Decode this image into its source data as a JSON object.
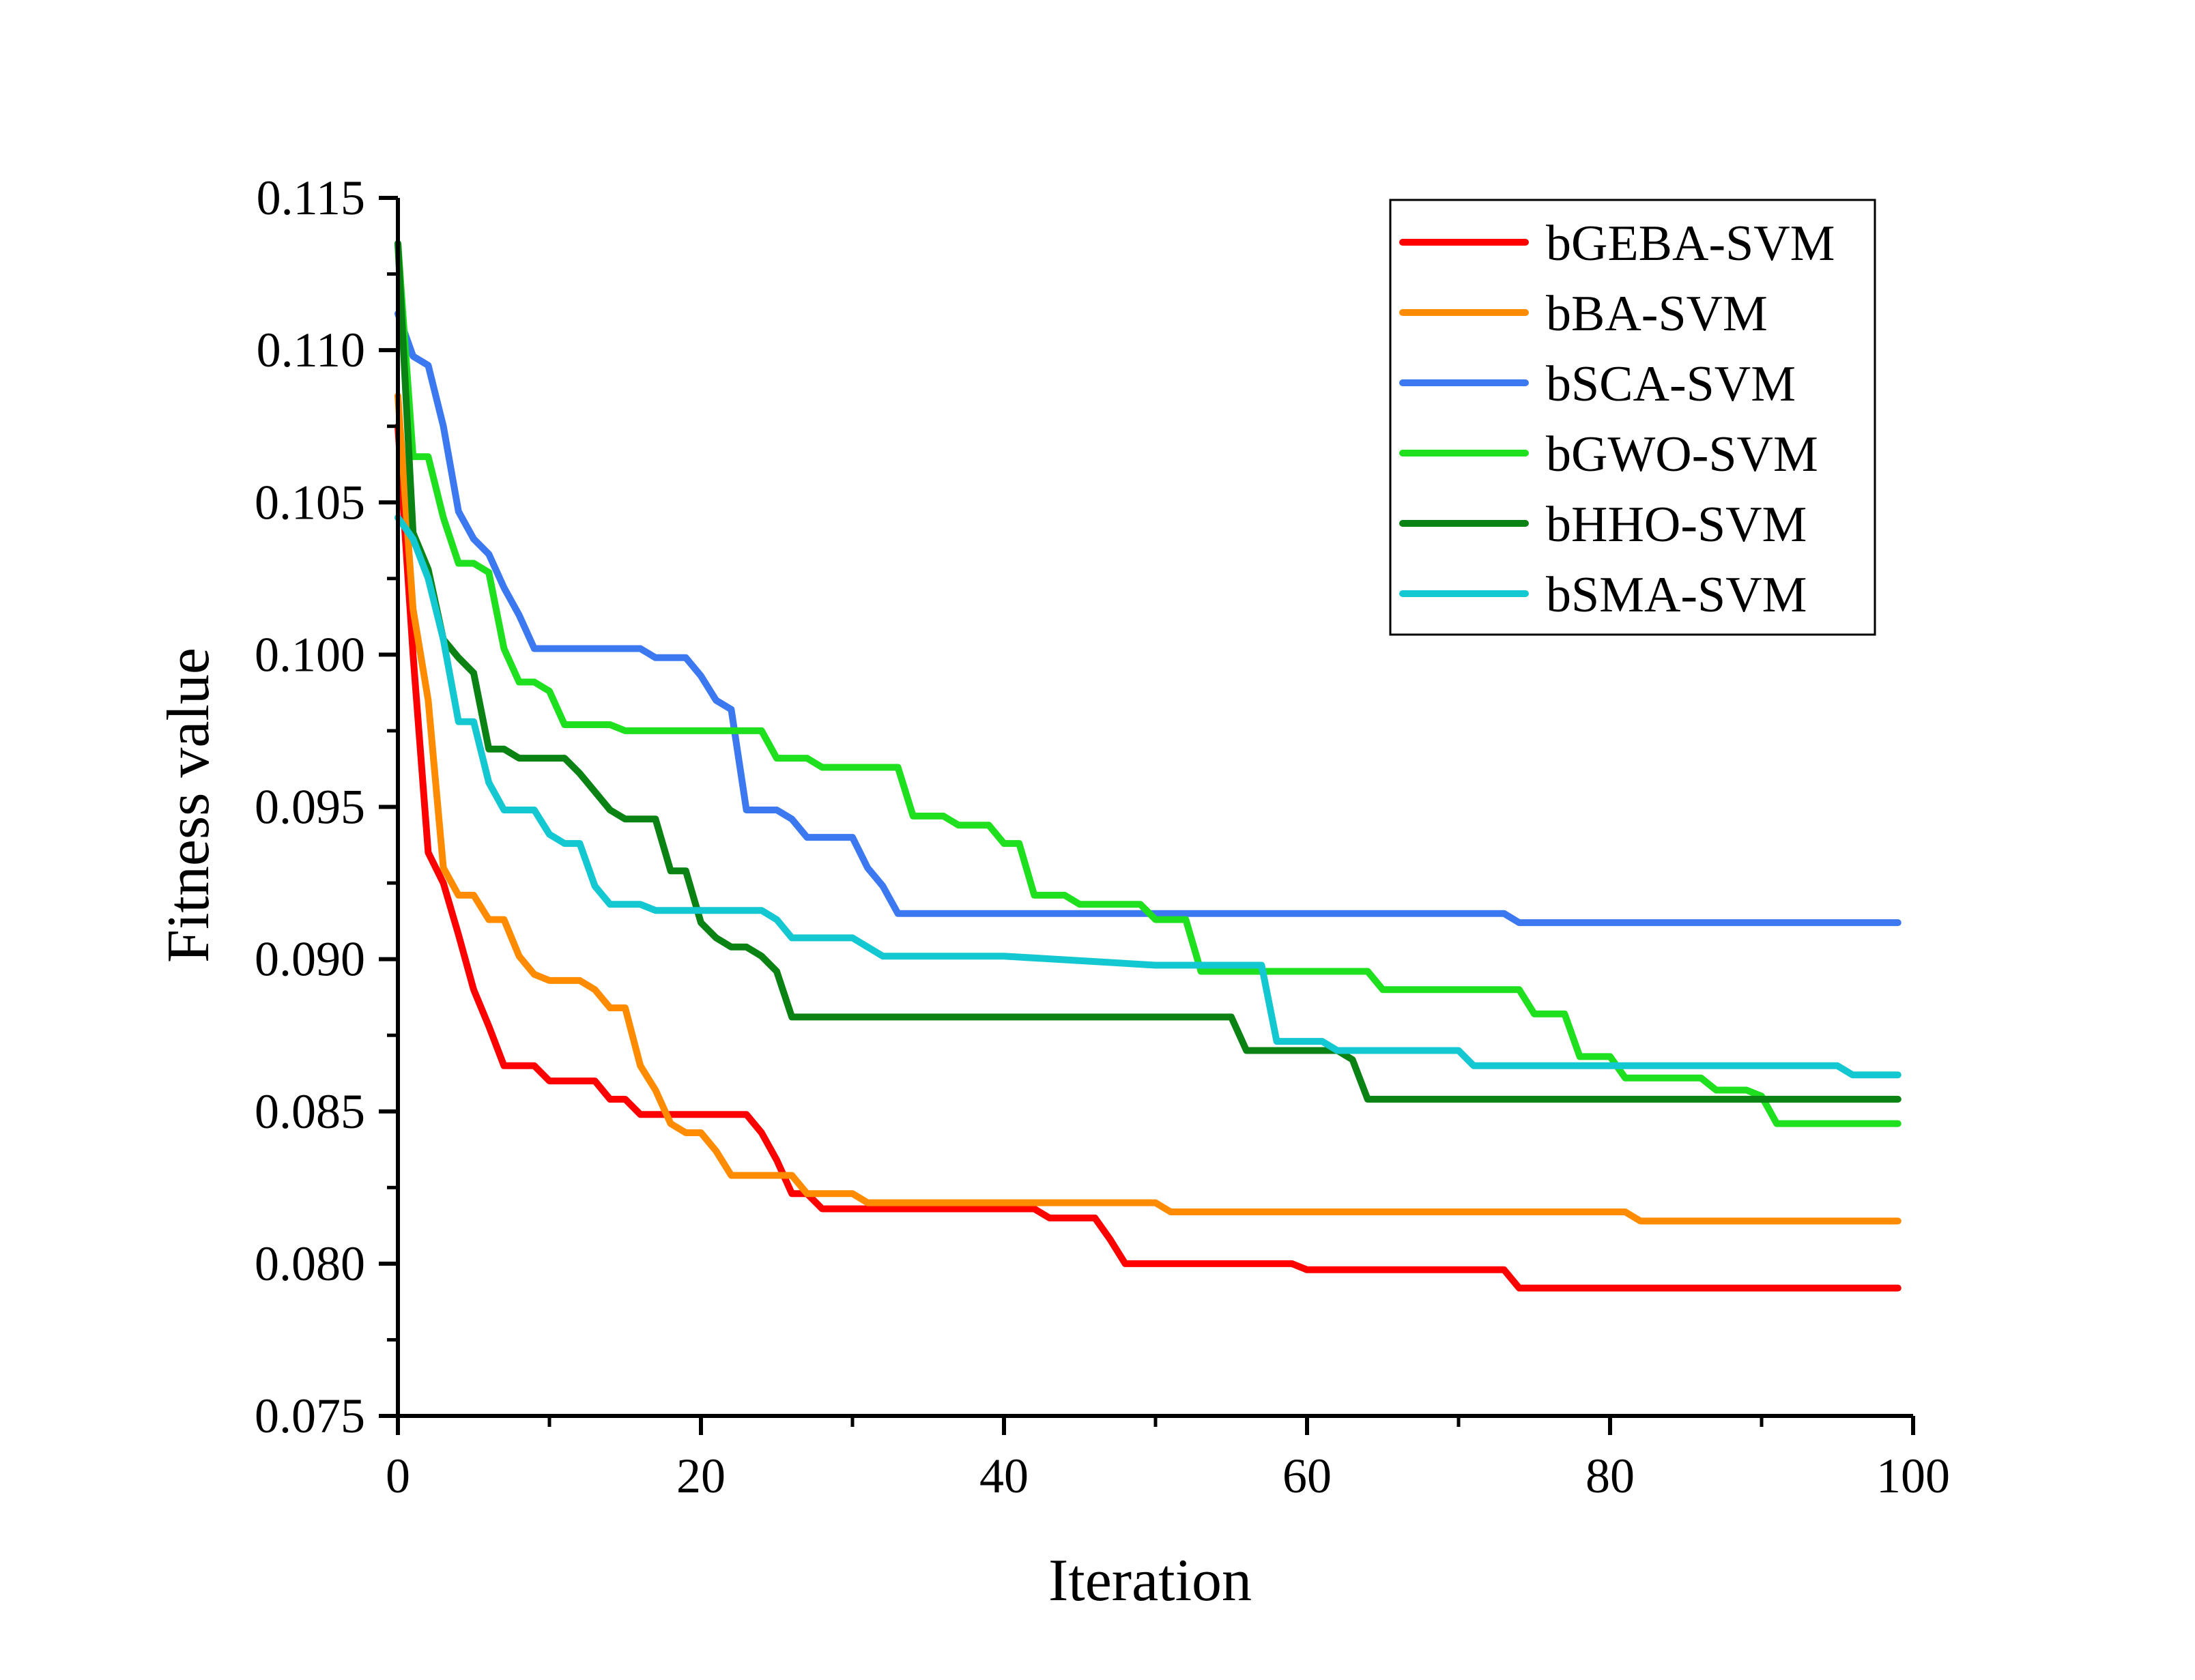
{
  "chart_data": {
    "type": "line",
    "title": "",
    "xlabel": "Iteration",
    "ylabel": "Fitness value",
    "xlim": [
      0,
      100
    ],
    "ylim": [
      0.075,
      0.115
    ],
    "xticks": [
      0,
      20,
      40,
      60,
      80,
      100
    ],
    "xtick_labels": [
      "0",
      "20",
      "40",
      "60",
      "80",
      "100"
    ],
    "yticks": [
      0.075,
      0.08,
      0.085,
      0.09,
      0.095,
      0.1,
      0.105,
      0.11,
      0.115
    ],
    "ytick_labels": [
      "0.075",
      "0.080",
      "0.085",
      "0.090",
      "0.095",
      "0.100",
      "0.105",
      "0.110",
      "0.115"
    ],
    "grid": false,
    "legend_position": "top-right",
    "series": [
      {
        "name": "bGEBA-SVM",
        "color": "#ff0000",
        "x": [
          0,
          1,
          2,
          3,
          4,
          5,
          6,
          7,
          8,
          9,
          10,
          11,
          12,
          13,
          14,
          15,
          16,
          17,
          18,
          19,
          20,
          21,
          22,
          23,
          24,
          25,
          26,
          27,
          28,
          29,
          30,
          31,
          32,
          33,
          34,
          35,
          36,
          37,
          38,
          39,
          40,
          41,
          42,
          43,
          44,
          45,
          46,
          47,
          48,
          49,
          50,
          51,
          52,
          53,
          54,
          55,
          56,
          57,
          58,
          59,
          60,
          61,
          62,
          63,
          64,
          65,
          66,
          67,
          68,
          69,
          70,
          71,
          72,
          73,
          74,
          75,
          80,
          85,
          90,
          95,
          99
        ],
        "y": [
          0.1075,
          0.1,
          0.0935,
          0.0925,
          0.0908,
          0.089,
          0.0878,
          0.0865,
          0.0865,
          0.0865,
          0.086,
          0.086,
          0.086,
          0.086,
          0.0854,
          0.0854,
          0.0849,
          0.0849,
          0.0849,
          0.0849,
          0.0849,
          0.0849,
          0.0849,
          0.0849,
          0.0843,
          0.0834,
          0.0823,
          0.0823,
          0.0818,
          0.0818,
          0.0818,
          0.0818,
          0.0818,
          0.0818,
          0.0818,
          0.0818,
          0.0818,
          0.0818,
          0.0818,
          0.0818,
          0.0818,
          0.0818,
          0.0818,
          0.0815,
          0.0815,
          0.0815,
          0.0815,
          0.0808,
          0.08,
          0.08,
          0.08,
          0.08,
          0.08,
          0.08,
          0.08,
          0.08,
          0.08,
          0.08,
          0.08,
          0.08,
          0.0798,
          0.0798,
          0.0798,
          0.0798,
          0.0798,
          0.0798,
          0.0798,
          0.0798,
          0.0798,
          0.0798,
          0.0798,
          0.0798,
          0.0798,
          0.0798,
          0.0792,
          0.0792,
          0.0792,
          0.0792,
          0.0792,
          0.0792,
          0.0792
        ]
      },
      {
        "name": "bBA-SVM",
        "color": "#ff8c00",
        "x": [
          0,
          1,
          2,
          3,
          4,
          5,
          6,
          7,
          8,
          9,
          10,
          11,
          12,
          13,
          14,
          15,
          16,
          17,
          18,
          19,
          20,
          21,
          22,
          23,
          24,
          25,
          26,
          27,
          28,
          29,
          30,
          31,
          32,
          33,
          34,
          40,
          45,
          49,
          50,
          51,
          55,
          60,
          70,
          80,
          81,
          82,
          90,
          99
        ],
        "y": [
          0.1085,
          0.1015,
          0.0985,
          0.093,
          0.0921,
          0.0921,
          0.0913,
          0.0913,
          0.0901,
          0.0895,
          0.0893,
          0.0893,
          0.0893,
          0.089,
          0.0884,
          0.0884,
          0.0865,
          0.0857,
          0.0846,
          0.0843,
          0.0843,
          0.0837,
          0.0829,
          0.0829,
          0.0829,
          0.0829,
          0.0829,
          0.0823,
          0.0823,
          0.0823,
          0.0823,
          0.082,
          0.082,
          0.082,
          0.082,
          0.082,
          0.082,
          0.082,
          0.082,
          0.0817,
          0.0817,
          0.0817,
          0.0817,
          0.0817,
          0.0817,
          0.0814,
          0.0814,
          0.0814
        ]
      },
      {
        "name": "bSCA-SVM",
        "color": "#3c78f0",
        "x": [
          0,
          1,
          2,
          3,
          4,
          5,
          6,
          7,
          8,
          9,
          10,
          11,
          12,
          13,
          14,
          15,
          16,
          17,
          18,
          19,
          20,
          21,
          22,
          23,
          24,
          25,
          26,
          27,
          28,
          29,
          30,
          31,
          32,
          33,
          34,
          40,
          50,
          60,
          70,
          73,
          74,
          80,
          90,
          99
        ],
        "y": [
          0.1112,
          0.1098,
          0.1095,
          0.1075,
          0.1047,
          0.1038,
          0.1033,
          0.1022,
          0.1013,
          0.1002,
          0.1002,
          0.1002,
          0.1002,
          0.1002,
          0.1002,
          0.1002,
          0.1002,
          0.0999,
          0.0999,
          0.0999,
          0.0993,
          0.0985,
          0.0982,
          0.0949,
          0.0949,
          0.0949,
          0.0946,
          0.094,
          0.094,
          0.094,
          0.094,
          0.093,
          0.0924,
          0.0915,
          0.0915,
          0.0915,
          0.0915,
          0.0915,
          0.0915,
          0.0915,
          0.0912,
          0.0912,
          0.0912,
          0.0912
        ]
      },
      {
        "name": "bGWO-SVM",
        "color": "#1ee01e",
        "x": [
          0,
          1,
          2,
          3,
          4,
          5,
          6,
          7,
          8,
          9,
          10,
          11,
          12,
          13,
          14,
          15,
          16,
          17,
          18,
          19,
          20,
          21,
          22,
          23,
          24,
          25,
          26,
          27,
          28,
          29,
          30,
          31,
          32,
          33,
          34,
          35,
          36,
          37,
          38,
          39,
          40,
          41,
          42,
          43,
          44,
          45,
          46,
          47,
          48,
          49,
          50,
          51,
          52,
          53,
          54,
          55,
          56,
          57,
          58,
          59,
          60,
          61,
          62,
          63,
          64,
          65,
          70,
          73,
          74,
          75,
          76,
          77,
          78,
          79,
          80,
          81,
          82,
          83,
          84,
          85,
          86,
          87,
          88,
          89,
          90,
          91,
          95,
          99
        ],
        "y": [
          0.1135,
          0.1065,
          0.1065,
          0.1045,
          0.103,
          0.103,
          0.1027,
          0.1002,
          0.0991,
          0.0991,
          0.0988,
          0.0977,
          0.0977,
          0.0977,
          0.0977,
          0.0975,
          0.0975,
          0.0975,
          0.0975,
          0.0975,
          0.0975,
          0.0975,
          0.0975,
          0.0975,
          0.0975,
          0.0966,
          0.0966,
          0.0966,
          0.0963,
          0.0963,
          0.0963,
          0.0963,
          0.0963,
          0.0963,
          0.0947,
          0.0947,
          0.0947,
          0.0944,
          0.0944,
          0.0944,
          0.0938,
          0.0938,
          0.0921,
          0.0921,
          0.0921,
          0.0918,
          0.0918,
          0.0918,
          0.0918,
          0.0918,
          0.0913,
          0.0913,
          0.0913,
          0.0896,
          0.0896,
          0.0896,
          0.0896,
          0.0896,
          0.0896,
          0.0896,
          0.0896,
          0.0896,
          0.0896,
          0.0896,
          0.0896,
          0.089,
          0.089,
          0.089,
          0.089,
          0.0882,
          0.0882,
          0.0882,
          0.0868,
          0.0868,
          0.0868,
          0.0861,
          0.0861,
          0.0861,
          0.0861,
          0.0861,
          0.0861,
          0.0857,
          0.0857,
          0.0857,
          0.0855,
          0.0846,
          0.0846,
          0.0846
        ]
      },
      {
        "name": "bHHO-SVM",
        "color": "#0a8214",
        "x": [
          0,
          1,
          2,
          3,
          4,
          5,
          6,
          7,
          8,
          9,
          10,
          11,
          12,
          13,
          14,
          15,
          16,
          17,
          18,
          19,
          20,
          21,
          22,
          23,
          24,
          25,
          26,
          27,
          28,
          30,
          40,
          50,
          55,
          56,
          57,
          58,
          59,
          60,
          61,
          62,
          63,
          64,
          65,
          70,
          80,
          90,
          99
        ],
        "y": [
          0.1135,
          0.104,
          0.1028,
          0.1005,
          0.0999,
          0.0994,
          0.0969,
          0.0969,
          0.0966,
          0.0966,
          0.0966,
          0.0966,
          0.0961,
          0.0955,
          0.0949,
          0.0946,
          0.0946,
          0.0946,
          0.0929,
          0.0929,
          0.0912,
          0.0907,
          0.0904,
          0.0904,
          0.0901,
          0.0896,
          0.0881,
          0.0881,
          0.0881,
          0.0881,
          0.0881,
          0.0881,
          0.0881,
          0.087,
          0.087,
          0.087,
          0.087,
          0.087,
          0.087,
          0.087,
          0.0867,
          0.0854,
          0.0854,
          0.0854,
          0.0854,
          0.0854,
          0.0854
        ]
      },
      {
        "name": "bSMA-SVM",
        "color": "#14c8d2",
        "x": [
          0,
          1,
          2,
          3,
          4,
          5,
          6,
          7,
          8,
          9,
          10,
          11,
          12,
          13,
          14,
          15,
          16,
          17,
          18,
          19,
          20,
          21,
          22,
          23,
          24,
          25,
          26,
          27,
          28,
          29,
          30,
          31,
          32,
          33,
          34,
          40,
          50,
          56,
          57,
          58,
          59,
          60,
          61,
          62,
          63,
          64,
          65,
          70,
          71,
          72,
          75,
          80,
          90,
          95,
          96,
          99
        ],
        "y": [
          0.1045,
          0.1038,
          0.1025,
          0.1005,
          0.0978,
          0.0978,
          0.0958,
          0.0949,
          0.0949,
          0.0949,
          0.0941,
          0.0938,
          0.0938,
          0.0924,
          0.0918,
          0.0918,
          0.0918,
          0.0916,
          0.0916,
          0.0916,
          0.0916,
          0.0916,
          0.0916,
          0.0916,
          0.0916,
          0.0913,
          0.0907,
          0.0907,
          0.0907,
          0.0907,
          0.0907,
          0.0904,
          0.0901,
          0.0901,
          0.0901,
          0.0901,
          0.0898,
          0.0898,
          0.0898,
          0.0873,
          0.0873,
          0.0873,
          0.0873,
          0.087,
          0.087,
          0.087,
          0.087,
          0.087,
          0.0865,
          0.0865,
          0.0865,
          0.0865,
          0.0865,
          0.0865,
          0.0862,
          0.0862
        ]
      }
    ]
  }
}
